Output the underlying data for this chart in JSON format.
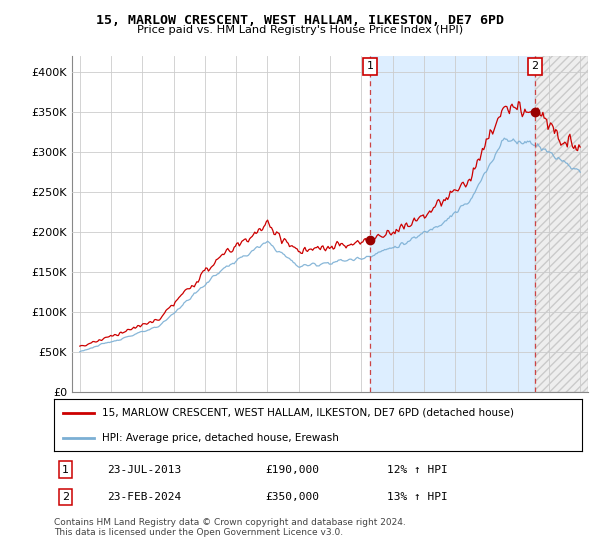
{
  "title": "15, MARLOW CRESCENT, WEST HALLAM, ILKESTON, DE7 6PD",
  "subtitle": "Price paid vs. HM Land Registry's House Price Index (HPI)",
  "ylim": [
    0,
    420000
  ],
  "yticks": [
    0,
    50000,
    100000,
    150000,
    200000,
    250000,
    300000,
    350000,
    400000
  ],
  "ytick_labels": [
    "£0",
    "£50K",
    "£100K",
    "£150K",
    "£200K",
    "£250K",
    "£300K",
    "£350K",
    "£400K"
  ],
  "hpi_color": "#7bafd4",
  "price_color": "#cc0000",
  "shade_color": "#ddeeff",
  "hatch_color": "#cccccc",
  "marker1_year": 2013.55,
  "marker1_price": 190000,
  "marker2_year": 2024.12,
  "marker2_price": 350000,
  "legend_line1": "15, MARLOW CRESCENT, WEST HALLAM, ILKESTON, DE7 6PD (detached house)",
  "legend_line2": "HPI: Average price, detached house, Erewash",
  "footer": "Contains HM Land Registry data © Crown copyright and database right 2024.\nThis data is licensed under the Open Government Licence v3.0.",
  "background_color": "#ffffff",
  "grid_color": "#cccccc",
  "xlim_left": 1994.5,
  "xlim_right": 2027.5
}
